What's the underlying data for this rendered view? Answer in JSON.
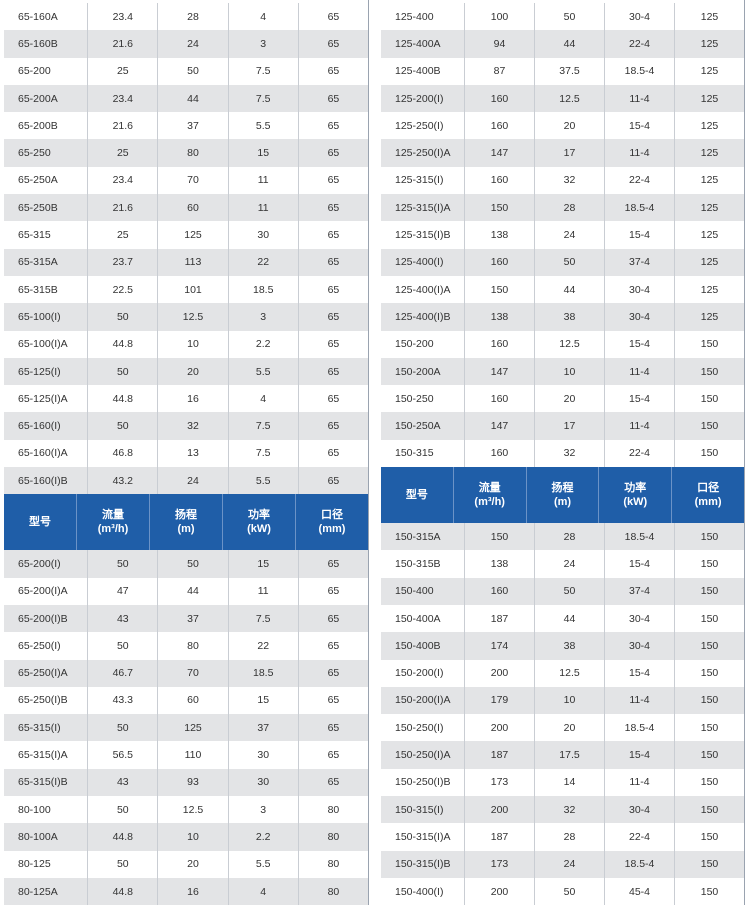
{
  "headers": {
    "model": "型号",
    "flow": "流量",
    "flow_unit": "(m³/h)",
    "head": "扬程",
    "head_unit": "(m)",
    "power": "功率",
    "power_unit": "(kW)",
    "diameter": "口径",
    "diameter_unit": "(mm)"
  },
  "left_top_rows": [
    [
      "65-160A",
      "23.4",
      "28",
      "4",
      "65"
    ],
    [
      "65-160B",
      "21.6",
      "24",
      "3",
      "65"
    ],
    [
      "65-200",
      "25",
      "50",
      "7.5",
      "65"
    ],
    [
      "65-200A",
      "23.4",
      "44",
      "7.5",
      "65"
    ],
    [
      "65-200B",
      "21.6",
      "37",
      "5.5",
      "65"
    ],
    [
      "65-250",
      "25",
      "80",
      "15",
      "65"
    ],
    [
      "65-250A",
      "23.4",
      "70",
      "11",
      "65"
    ],
    [
      "65-250B",
      "21.6",
      "60",
      "11",
      "65"
    ],
    [
      "65-315",
      "25",
      "125",
      "30",
      "65"
    ],
    [
      "65-315A",
      "23.7",
      "113",
      "22",
      "65"
    ],
    [
      "65-315B",
      "22.5",
      "101",
      "18.5",
      "65"
    ],
    [
      "65-100(I)",
      "50",
      "12.5",
      "3",
      "65"
    ],
    [
      "65-100(I)A",
      "44.8",
      "10",
      "2.2",
      "65"
    ],
    [
      "65-125(I)",
      "50",
      "20",
      "5.5",
      "65"
    ],
    [
      "65-125(I)A",
      "44.8",
      "16",
      "4",
      "65"
    ],
    [
      "65-160(I)",
      "50",
      "32",
      "7.5",
      "65"
    ],
    [
      "65-160(I)A",
      "46.8",
      "13",
      "7.5",
      "65"
    ],
    [
      "65-160(I)B",
      "43.2",
      "24",
      "5.5",
      "65"
    ]
  ],
  "left_bottom_rows": [
    [
      "65-200(I)",
      "50",
      "50",
      "15",
      "65"
    ],
    [
      "65-200(I)A",
      "47",
      "44",
      "11",
      "65"
    ],
    [
      "65-200(I)B",
      "43",
      "37",
      "7.5",
      "65"
    ],
    [
      "65-250(I)",
      "50",
      "80",
      "22",
      "65"
    ],
    [
      "65-250(I)A",
      "46.7",
      "70",
      "18.5",
      "65"
    ],
    [
      "65-250(I)B",
      "43.3",
      "60",
      "15",
      "65"
    ],
    [
      "65-315(I)",
      "50",
      "125",
      "37",
      "65"
    ],
    [
      "65-315(I)A",
      "56.5",
      "110",
      "30",
      "65"
    ],
    [
      "65-315(I)B",
      "43",
      "93",
      "30",
      "65"
    ],
    [
      "80-100",
      "50",
      "12.5",
      "3",
      "80"
    ],
    [
      "80-100A",
      "44.8",
      "10",
      "2.2",
      "80"
    ],
    [
      "80-125",
      "50",
      "20",
      "5.5",
      "80"
    ],
    [
      "80-125A",
      "44.8",
      "16",
      "4",
      "80"
    ]
  ],
  "right_top_rows": [
    [
      "125-400",
      "100",
      "50",
      "30-4",
      "125"
    ],
    [
      "125-400A",
      "94",
      "44",
      "22-4",
      "125"
    ],
    [
      "125-400B",
      "87",
      "37.5",
      "18.5-4",
      "125"
    ],
    [
      "125-200(I)",
      "160",
      "12.5",
      "11-4",
      "125"
    ],
    [
      "125-250(I)",
      "160",
      "20",
      "15-4",
      "125"
    ],
    [
      "125-250(I)A",
      "147",
      "17",
      "11-4",
      "125"
    ],
    [
      "125-315(I)",
      "160",
      "32",
      "22-4",
      "125"
    ],
    [
      "125-315(I)A",
      "150",
      "28",
      "18.5-4",
      "125"
    ],
    [
      "125-315(I)B",
      "138",
      "24",
      "15-4",
      "125"
    ],
    [
      "125-400(I)",
      "160",
      "50",
      "37-4",
      "125"
    ],
    [
      "125-400(I)A",
      "150",
      "44",
      "30-4",
      "125"
    ],
    [
      "125-400(I)B",
      "138",
      "38",
      "30-4",
      "125"
    ],
    [
      "150-200",
      "160",
      "12.5",
      "15-4",
      "150"
    ],
    [
      "150-200A",
      "147",
      "10",
      "11-4",
      "150"
    ],
    [
      "150-250",
      "160",
      "20",
      "15-4",
      "150"
    ],
    [
      "150-250A",
      "147",
      "17",
      "11-4",
      "150"
    ],
    [
      "150-315",
      "160",
      "32",
      "22-4",
      "150"
    ]
  ],
  "right_bottom_rows": [
    [
      "150-315A",
      "150",
      "28",
      "18.5-4",
      "150"
    ],
    [
      "150-315B",
      "138",
      "24",
      "15-4",
      "150"
    ],
    [
      "150-400",
      "160",
      "50",
      "37-4",
      "150"
    ],
    [
      "150-400A",
      "187",
      "44",
      "30-4",
      "150"
    ],
    [
      "150-400B",
      "174",
      "38",
      "30-4",
      "150"
    ],
    [
      "150-200(I)",
      "200",
      "12.5",
      "15-4",
      "150"
    ],
    [
      "150-200(I)A",
      "179",
      "10",
      "11-4",
      "150"
    ],
    [
      "150-250(I)",
      "200",
      "20",
      "18.5-4",
      "150"
    ],
    [
      "150-250(I)A",
      "187",
      "17.5",
      "15-4",
      "150"
    ],
    [
      "150-250(I)B",
      "173",
      "14",
      "11-4",
      "150"
    ],
    [
      "150-315(I)",
      "200",
      "32",
      "30-4",
      "150"
    ],
    [
      "150-315(I)A",
      "187",
      "28",
      "22-4",
      "150"
    ],
    [
      "150-315(I)B",
      "173",
      "24",
      "18.5-4",
      "150"
    ],
    [
      "150-400(I)",
      "200",
      "50",
      "45-4",
      "150"
    ]
  ]
}
